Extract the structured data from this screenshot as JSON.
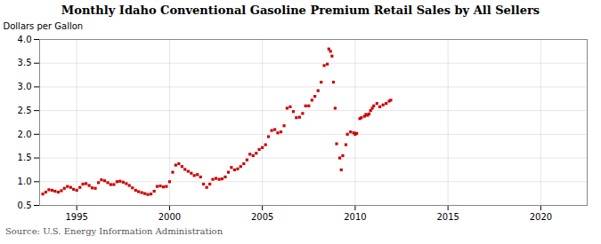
{
  "chart_data": {
    "type": "scatter",
    "title": "Monthly Idaho Conventional Gasoline Premium Retail Sales by All Sellers",
    "ylabel": "Dollars per Gallon",
    "annotations": [
      "Source: U.S. Energy Information Administration"
    ],
    "color": "#cc0000",
    "marker": "square",
    "grid": true,
    "xlim": [
      1993.0,
      2022.5
    ],
    "ylim": [
      0.5,
      4.0
    ],
    "xticks": [
      1995,
      2000,
      2005,
      2010,
      2015,
      2020
    ],
    "yticks": [
      0.5,
      {
        "value": 1.0,
        "label": "1.0"
      },
      1.5,
      {
        "value": 2.0,
        "label": "2.0"
      },
      2.5,
      {
        "value": 3.0,
        "label": "3.0"
      },
      3.5,
      {
        "value": 4.0,
        "label": "4.0"
      }
    ],
    "x": [
      1993.17,
      1993.33,
      1993.5,
      1993.67,
      1993.83,
      1994.0,
      1994.17,
      1994.33,
      1994.5,
      1994.67,
      1994.83,
      1995.0,
      1995.17,
      1995.33,
      1995.5,
      1995.67,
      1995.83,
      1996.0,
      1996.17,
      1996.33,
      1996.5,
      1996.67,
      1996.83,
      1997.0,
      1997.17,
      1997.33,
      1997.5,
      1997.67,
      1997.83,
      1998.0,
      1998.17,
      1998.33,
      1998.5,
      1998.67,
      1998.83,
      1999.0,
      1999.17,
      1999.33,
      1999.5,
      1999.67,
      1999.83,
      2000.0,
      2000.17,
      2000.33,
      2000.5,
      2000.67,
      2000.83,
      2001.0,
      2001.17,
      2001.33,
      2001.5,
      2001.67,
      2001.83,
      2002.0,
      2002.17,
      2002.33,
      2002.5,
      2002.67,
      2002.83,
      2003.0,
      2003.17,
      2003.33,
      2003.5,
      2003.67,
      2003.83,
      2004.0,
      2004.17,
      2004.33,
      2004.5,
      2004.67,
      2004.83,
      2005.0,
      2005.17,
      2005.33,
      2005.5,
      2005.67,
      2005.83,
      2006.0,
      2006.17,
      2006.33,
      2006.5,
      2006.67,
      2006.83,
      2007.0,
      2007.17,
      2007.33,
      2007.5,
      2007.67,
      2007.83,
      2008.0,
      2008.17,
      2008.33,
      2008.5,
      2008.58,
      2008.67,
      2008.75,
      2008.83,
      2008.92,
      2009.0,
      2009.17,
      2009.25,
      2009.33,
      2009.5,
      2009.58,
      2009.75,
      2009.92,
      2010.0,
      2010.08,
      2010.25,
      2010.33,
      2010.5,
      2010.58,
      2010.67,
      2010.75,
      2010.83,
      2010.92,
      2011.0,
      2011.17,
      2011.33,
      2011.5,
      2011.67,
      2011.83,
      2011.92
    ],
    "values": [
      0.74,
      0.78,
      0.83,
      0.82,
      0.8,
      0.78,
      0.81,
      0.86,
      0.9,
      0.88,
      0.84,
      0.82,
      0.88,
      0.95,
      0.96,
      0.92,
      0.87,
      0.86,
      0.98,
      1.04,
      1.02,
      0.98,
      0.94,
      0.94,
      1.0,
      1.01,
      0.99,
      0.96,
      0.92,
      0.87,
      0.82,
      0.79,
      0.77,
      0.75,
      0.73,
      0.74,
      0.8,
      0.9,
      0.91,
      0.89,
      0.9,
      1.0,
      1.2,
      1.35,
      1.38,
      1.32,
      1.26,
      1.22,
      1.18,
      1.13,
      1.15,
      1.1,
      0.95,
      0.88,
      0.95,
      1.05,
      1.07,
      1.05,
      1.06,
      1.1,
      1.2,
      1.3,
      1.25,
      1.27,
      1.32,
      1.38,
      1.46,
      1.58,
      1.55,
      1.6,
      1.68,
      1.72,
      1.78,
      1.95,
      2.08,
      2.1,
      2.03,
      2.05,
      2.18,
      2.55,
      2.58,
      2.48,
      2.35,
      2.36,
      2.44,
      2.6,
      2.6,
      2.72,
      2.8,
      2.92,
      3.1,
      3.45,
      3.48,
      3.8,
      3.75,
      3.65,
      3.1,
      2.55,
      1.8,
      1.5,
      1.25,
      1.55,
      1.78,
      2.0,
      2.05,
      2.03,
      2.0,
      2.02,
      2.33,
      2.35,
      2.38,
      2.42,
      2.4,
      2.43,
      2.5,
      2.55,
      2.6,
      2.65,
      2.58,
      2.62,
      2.65,
      2.7,
      2.72
    ]
  }
}
